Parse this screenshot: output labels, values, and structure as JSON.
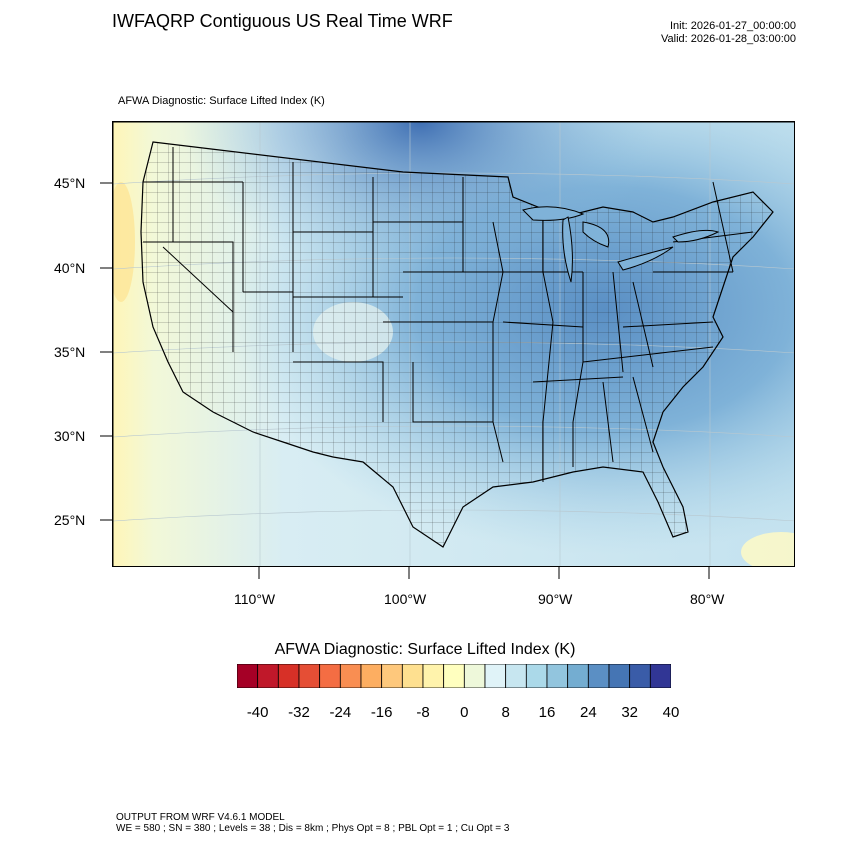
{
  "header": {
    "title": "IWFAQRP Contiguous US Real Time WRF",
    "init": "Init: 2026-01-27_00:00:00",
    "valid": "Valid: 2026-01-28_03:00:00",
    "subtitle": "AFWA Diagnostic: Surface Lifted Index   (K)"
  },
  "map": {
    "lat_labels": [
      "45°N",
      "40°N",
      "35°N",
      "30°N",
      "25°N"
    ],
    "lon_labels": [
      "110°W",
      "100°W",
      "90°W",
      "80°W"
    ],
    "field_description": "Surface lifted index shading over contiguous US with state and county boundaries"
  },
  "colorbar": {
    "title": "AFWA Diagnostic: Surface Lifted Index  (K)",
    "labels": [
      "-40",
      "-32",
      "-24",
      "-16",
      "-8",
      "0",
      "8",
      "16",
      "24",
      "32",
      "40"
    ],
    "colors": [
      "#a50026",
      "#c0182a",
      "#d73027",
      "#e54e35",
      "#f46d43",
      "#f98e52",
      "#fdae61",
      "#fec87c",
      "#fee090",
      "#fff3ac",
      "#ffffbf",
      "#eef8da",
      "#e0f3f8",
      "#c7e6f0",
      "#abd9e9",
      "#92c5de",
      "#74add1",
      "#5b8fc4",
      "#4575b4",
      "#3a5ca8",
      "#313695"
    ]
  },
  "footer": {
    "line1": "OUTPUT FROM WRF V4.6.1 MODEL",
    "line2": "WE = 580 ; SN = 380 ; Levels = 38 ; Dis = 8km ; Phys Opt = 8 ; PBL Opt = 1 ; Cu Opt = 3"
  }
}
